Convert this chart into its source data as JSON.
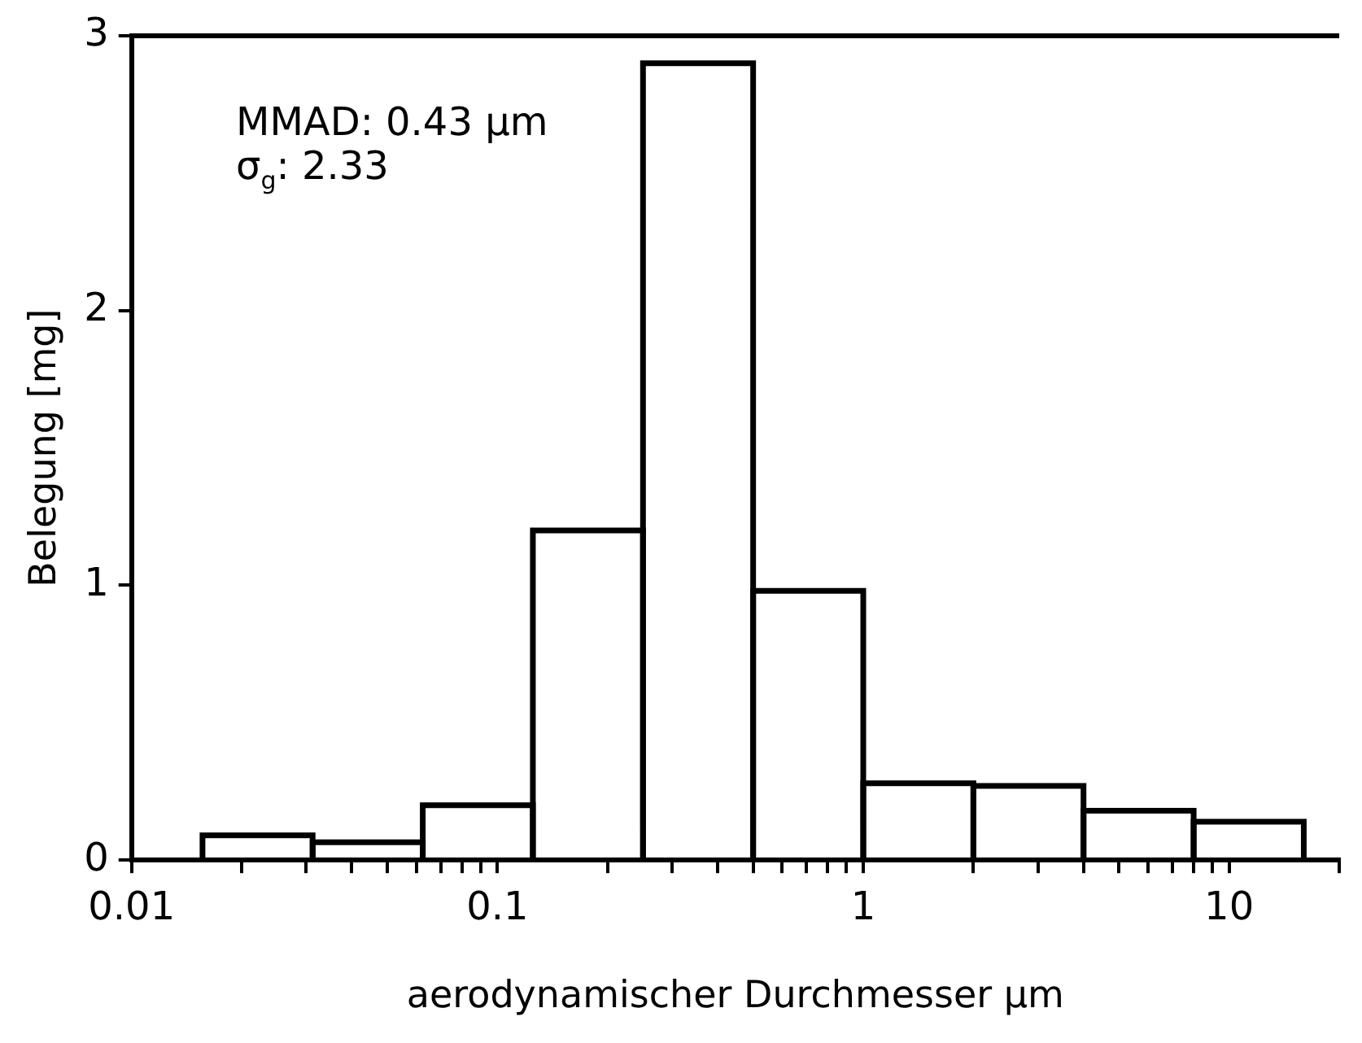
{
  "chart_data": {
    "type": "histogram",
    "xlabel": "aerodynamischer Durchmesser µm",
    "ylabel": "Belegung [mg]",
    "bins": [
      0.015625,
      0.03125,
      0.0625,
      0.125,
      0.25,
      0.5,
      1,
      2,
      4,
      8,
      16
    ],
    "values": [
      0.09,
      0.065,
      0.2,
      1.2,
      2.9,
      0.98,
      0.28,
      0.27,
      0.18,
      0.14
    ],
    "color": "#000000",
    "log": "x",
    "xlim": [
      0.01,
      20
    ],
    "ylim": [
      0,
      3
    ],
    "yticks": [
      0,
      1,
      2,
      3
    ],
    "xticks": [
      0.01,
      {
        "value": 0.02,
        "label": null
      },
      {
        "value": 0.03,
        "label": null
      },
      {
        "value": 0.04,
        "label": null
      },
      {
        "value": 0.05,
        "label": null
      },
      {
        "value": 0.06,
        "label": null
      },
      {
        "value": 0.07,
        "label": null
      },
      {
        "value": 0.08,
        "label": null
      },
      {
        "value": 0.09,
        "label": null
      },
      0.1,
      {
        "value": 0.2,
        "label": null
      },
      {
        "value": 0.3,
        "label": null
      },
      {
        "value": 0.4,
        "label": null
      },
      {
        "value": 0.5,
        "label": null
      },
      {
        "value": 0.6,
        "label": null
      },
      {
        "value": 0.7,
        "label": null
      },
      {
        "value": 0.8,
        "label": null
      },
      {
        "value": 0.9,
        "label": null
      },
      1,
      {
        "value": 2,
        "label": null
      },
      {
        "value": 3,
        "label": null
      },
      {
        "value": 4,
        "label": null
      },
      {
        "value": 5,
        "label": null
      },
      {
        "value": 6,
        "label": null
      },
      {
        "value": 7,
        "label": null
      },
      {
        "value": 8,
        "label": null
      },
      {
        "value": 9,
        "label": null
      },
      10,
      {
        "value": 20,
        "label": null
      }
    ],
    "annotations": [
      "MMAD: 0.43 µm",
      "σ$_{g}$: 2.33"
    ],
    "grid": false,
    "legend": false
  }
}
